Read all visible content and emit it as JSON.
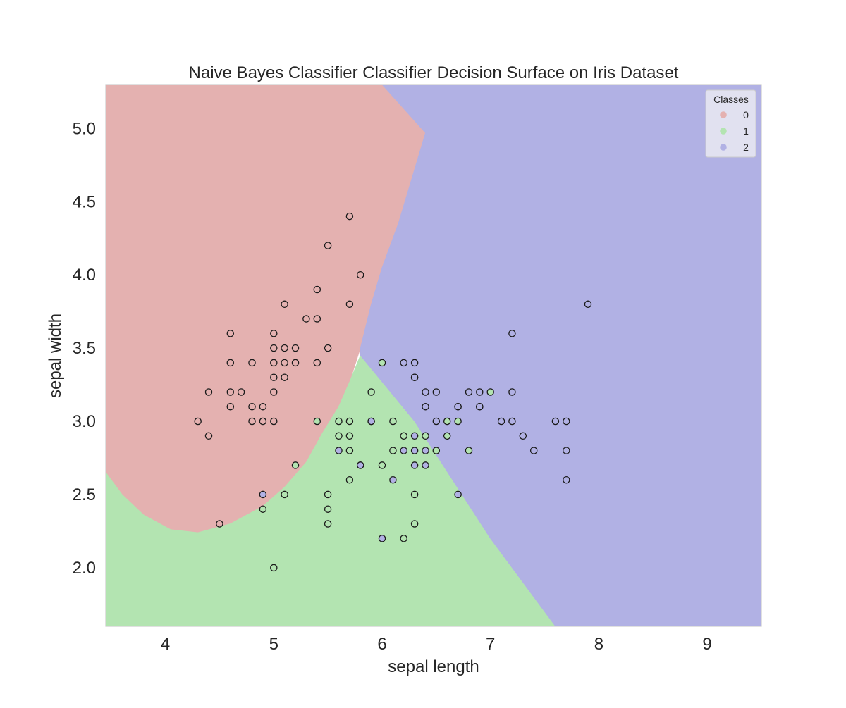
{
  "chart_data": {
    "type": "scatter",
    "subtype": "decision-surface",
    "title": "Naive Bayes Classifier Classifier Decision Surface on Iris Dataset",
    "xlabel": "sepal length",
    "ylabel": "sepal width",
    "xlim": [
      3.45,
      9.5
    ],
    "ylim": [
      1.6,
      5.3
    ],
    "xticks": [
      4,
      5,
      6,
      7,
      8,
      9
    ],
    "yticks": [
      2.0,
      2.5,
      3.0,
      3.5,
      4.0,
      4.5,
      5.0
    ],
    "ytick_labels": [
      "2.0",
      "2.5",
      "3.0",
      "3.5",
      "4.0",
      "4.5",
      "5.0"
    ],
    "grid": false,
    "legend": {
      "title": "Classes",
      "position": "top-right",
      "entries": [
        {
          "label": "0",
          "color": "#e4b1b0"
        },
        {
          "label": "1",
          "color": "#b3e4b1"
        },
        {
          "label": "2",
          "color": "#b1b1e4"
        }
      ]
    },
    "regions": [
      {
        "class": "0",
        "color": "#e4b1b0",
        "polygon": [
          [
            3.45,
            5.3
          ],
          [
            6.0,
            5.3
          ],
          [
            6.4,
            4.97
          ],
          [
            6.15,
            4.35
          ],
          [
            6.0,
            4.05
          ],
          [
            5.9,
            3.8
          ],
          [
            5.8,
            3.5
          ],
          [
            5.7,
            3.27
          ],
          [
            5.6,
            3.1
          ],
          [
            5.45,
            2.92
          ],
          [
            5.3,
            2.72
          ],
          [
            5.1,
            2.55
          ],
          [
            4.9,
            2.42
          ],
          [
            4.6,
            2.3
          ],
          [
            4.3,
            2.24
          ],
          [
            4.05,
            2.26
          ],
          [
            3.8,
            2.36
          ],
          [
            3.6,
            2.5
          ],
          [
            3.45,
            2.65
          ]
        ]
      },
      {
        "class": "0",
        "color": "#e4b1b0",
        "polygon": [
          [
            9.15,
            5.02
          ],
          [
            9.5,
            5.15
          ],
          [
            9.5,
            4.7
          ],
          [
            9.3,
            4.9
          ]
        ]
      },
      {
        "class": "1",
        "color": "#b3e4b1",
        "polygon": [
          [
            3.45,
            2.65
          ],
          [
            3.6,
            2.5
          ],
          [
            3.8,
            2.36
          ],
          [
            4.05,
            2.26
          ],
          [
            4.3,
            2.24
          ],
          [
            4.6,
            2.3
          ],
          [
            4.9,
            2.42
          ],
          [
            5.1,
            2.55
          ],
          [
            5.3,
            2.72
          ],
          [
            5.45,
            2.92
          ],
          [
            5.6,
            3.1
          ],
          [
            5.7,
            3.27
          ],
          [
            5.8,
            3.45
          ],
          [
            6.3,
            3.0
          ],
          [
            7.0,
            2.2
          ],
          [
            7.6,
            1.6
          ],
          [
            3.45,
            1.6
          ]
        ]
      },
      {
        "class": "2",
        "color": "#b1b1e4",
        "polygon": [
          [
            6.0,
            5.3
          ],
          [
            9.5,
            5.3
          ],
          [
            9.5,
            1.6
          ],
          [
            7.6,
            1.6
          ],
          [
            7.0,
            2.2
          ],
          [
            6.3,
            3.0
          ],
          [
            5.8,
            3.45
          ],
          [
            5.8,
            3.5
          ],
          [
            5.9,
            3.8
          ],
          [
            6.0,
            4.05
          ],
          [
            6.15,
            4.35
          ],
          [
            6.4,
            4.97
          ]
        ]
      }
    ],
    "series": [
      {
        "name": "0",
        "color": "#e4b1b0",
        "points": [
          [
            4.3,
            3.0
          ],
          [
            4.4,
            2.9
          ],
          [
            4.4,
            3.2
          ],
          [
            4.5,
            2.3
          ],
          [
            4.6,
            3.1
          ],
          [
            4.6,
            3.2
          ],
          [
            4.6,
            3.4
          ],
          [
            4.6,
            3.6
          ],
          [
            4.7,
            3.2
          ],
          [
            4.8,
            3.0
          ],
          [
            4.8,
            3.1
          ],
          [
            4.8,
            3.4
          ],
          [
            4.9,
            3.0
          ],
          [
            4.9,
            3.1
          ],
          [
            5.0,
            3.0
          ],
          [
            5.0,
            3.2
          ],
          [
            5.0,
            3.3
          ],
          [
            5.0,
            3.4
          ],
          [
            5.0,
            3.5
          ],
          [
            5.0,
            3.6
          ],
          [
            5.1,
            3.3
          ],
          [
            5.1,
            3.4
          ],
          [
            5.1,
            3.5
          ],
          [
            5.1,
            3.8
          ],
          [
            5.2,
            3.4
          ],
          [
            5.2,
            3.5
          ],
          [
            5.3,
            3.7
          ],
          [
            5.4,
            3.4
          ],
          [
            5.4,
            3.7
          ],
          [
            5.4,
            3.9
          ],
          [
            5.5,
            3.5
          ],
          [
            5.5,
            4.2
          ],
          [
            5.7,
            3.8
          ],
          [
            5.7,
            4.4
          ],
          [
            5.8,
            4.0
          ]
        ]
      },
      {
        "name": "1",
        "color": "#b3e4b1",
        "points": [
          [
            4.9,
            2.4
          ],
          [
            5.0,
            2.0
          ],
          [
            5.1,
            2.5
          ],
          [
            5.2,
            2.7
          ],
          [
            5.4,
            3.0
          ],
          [
            5.5,
            2.3
          ],
          [
            5.5,
            2.4
          ],
          [
            5.5,
            2.5
          ],
          [
            5.6,
            2.9
          ],
          [
            5.6,
            3.0
          ],
          [
            5.7,
            2.6
          ],
          [
            5.7,
            2.8
          ],
          [
            5.7,
            2.9
          ],
          [
            5.7,
            3.0
          ],
          [
            5.8,
            2.7
          ],
          [
            5.9,
            3.0
          ],
          [
            5.9,
            3.2
          ],
          [
            6.0,
            2.7
          ],
          [
            6.0,
            3.4
          ],
          [
            6.1,
            2.8
          ],
          [
            6.1,
            3.0
          ],
          [
            6.2,
            2.2
          ],
          [
            6.2,
            2.9
          ],
          [
            6.3,
            2.3
          ],
          [
            6.3,
            2.5
          ],
          [
            6.3,
            3.3
          ],
          [
            6.4,
            2.9
          ],
          [
            6.5,
            2.8
          ],
          [
            6.6,
            2.9
          ],
          [
            6.6,
            3.0
          ],
          [
            6.7,
            3.0
          ],
          [
            6.7,
            3.1
          ],
          [
            6.8,
            2.8
          ],
          [
            6.9,
            3.1
          ],
          [
            7.0,
            3.2
          ]
        ]
      },
      {
        "name": "2",
        "color": "#b1b1e4",
        "points": [
          [
            4.9,
            2.5
          ],
          [
            5.6,
            2.8
          ],
          [
            5.8,
            2.7
          ],
          [
            5.9,
            3.0
          ],
          [
            6.0,
            2.2
          ],
          [
            6.1,
            2.6
          ],
          [
            6.2,
            2.8
          ],
          [
            6.2,
            3.4
          ],
          [
            6.3,
            2.7
          ],
          [
            6.3,
            2.8
          ],
          [
            6.3,
            2.9
          ],
          [
            6.3,
            3.3
          ],
          [
            6.3,
            3.4
          ],
          [
            6.4,
            2.7
          ],
          [
            6.4,
            2.8
          ],
          [
            6.4,
            3.1
          ],
          [
            6.4,
            3.2
          ],
          [
            6.5,
            3.0
          ],
          [
            6.5,
            3.2
          ],
          [
            6.7,
            2.5
          ],
          [
            6.7,
            3.1
          ],
          [
            6.8,
            3.2
          ],
          [
            6.9,
            3.1
          ],
          [
            6.9,
            3.2
          ],
          [
            7.1,
            3.0
          ],
          [
            7.2,
            3.0
          ],
          [
            7.2,
            3.2
          ],
          [
            7.2,
            3.6
          ],
          [
            7.3,
            2.9
          ],
          [
            7.4,
            2.8
          ],
          [
            7.6,
            3.0
          ],
          [
            7.7,
            2.6
          ],
          [
            7.7,
            2.8
          ],
          [
            7.7,
            3.0
          ],
          [
            7.9,
            3.8
          ]
        ]
      }
    ]
  }
}
